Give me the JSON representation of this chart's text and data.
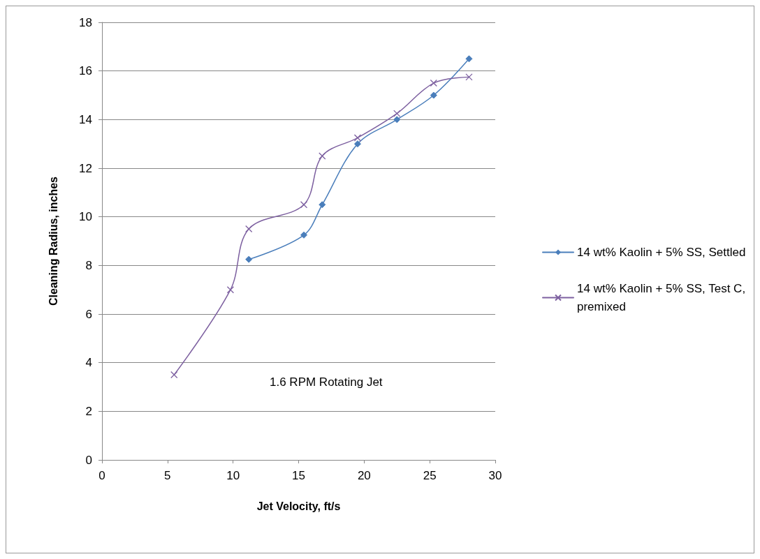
{
  "chart_data": {
    "type": "line",
    "xlabel": "Jet Velocity, ft/s",
    "ylabel": "Cleaning Radius, inches",
    "xlim": [
      0,
      30
    ],
    "xticks": [
      0,
      5,
      10,
      15,
      20,
      25,
      30
    ],
    "ylim": [
      0,
      18
    ],
    "yticks": [
      0,
      2,
      4,
      6,
      8,
      10,
      12,
      14,
      16,
      18
    ],
    "grid": "y",
    "legend": "right",
    "line_style": "solid",
    "annotations": [
      "1.6 RPM Rotating Jet"
    ],
    "series": [
      {
        "name": "14 wt% Kaolin + 5% SS, Settled",
        "color": "#4a7ebb",
        "marker": "diamond",
        "x": [
          11.2,
          15.4,
          16.8,
          19.5,
          22.5,
          25.3,
          28.0
        ],
        "values": [
          8.25,
          9.25,
          10.5,
          13.0,
          14.0,
          15.0,
          16.5
        ]
      },
      {
        "name": "14 wt% Kaolin + 5% SS, Test C, premixed",
        "color": "#7d60a0",
        "marker": "cross",
        "x": [
          5.5,
          9.8,
          11.2,
          15.4,
          16.8,
          19.5,
          22.5,
          25.3,
          28.0
        ],
        "values": [
          3.5,
          7.0,
          9.5,
          10.5,
          12.5,
          13.25,
          14.25,
          15.5,
          15.75
        ]
      }
    ]
  }
}
